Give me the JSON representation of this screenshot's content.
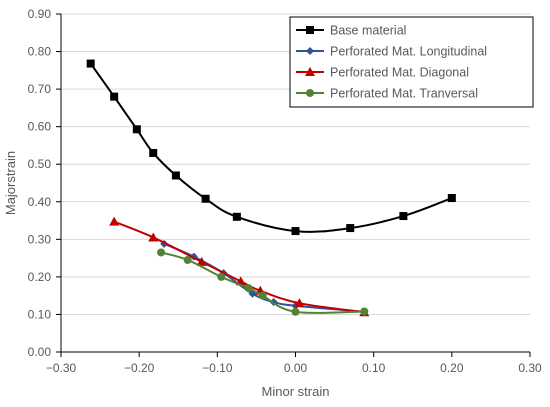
{
  "chart_data": {
    "type": "line",
    "title": "",
    "xlabel": "Minor strain",
    "ylabel": "Majorstrain",
    "xlim": [
      -0.3,
      0.3
    ],
    "ylim": [
      0.0,
      0.9
    ],
    "xticks": [
      -0.3,
      -0.2,
      -0.1,
      0.0,
      0.1,
      0.2,
      0.3
    ],
    "xtick_labels": [
      "−0.30",
      "−0.20",
      "−0.10",
      "0.00",
      "0.10",
      "0.20",
      "0.30"
    ],
    "yticks": [
      0.0,
      0.1,
      0.2,
      0.3,
      0.4,
      0.5,
      0.6,
      0.7,
      0.8,
      0.9
    ],
    "ytick_labels": [
      "0.00",
      "0.10",
      "0.20",
      "0.30",
      "0.40",
      "0.50",
      "0.60",
      "0.70",
      "0.80",
      "0.90"
    ],
    "grid": "horizontal",
    "legend_position": "top-right",
    "series": [
      {
        "name": "Base material",
        "color": "#000000",
        "marker": "square",
        "points": [
          [
            -0.262,
            0.768
          ],
          [
            -0.232,
            0.68
          ],
          [
            -0.203,
            0.593
          ],
          [
            -0.182,
            0.53
          ],
          [
            -0.153,
            0.47
          ],
          [
            -0.115,
            0.408
          ],
          [
            -0.075,
            0.36
          ],
          [
            0.0,
            0.322
          ],
          [
            0.07,
            0.33
          ],
          [
            0.138,
            0.362
          ],
          [
            0.2,
            0.41
          ]
        ]
      },
      {
        "name": "Perforated Mat. Longitudinal",
        "color": "#2F5597",
        "marker": "diamond",
        "points": [
          [
            -0.168,
            0.288
          ],
          [
            -0.13,
            0.254
          ],
          [
            -0.092,
            0.21
          ],
          [
            -0.055,
            0.155
          ],
          [
            -0.028,
            0.133
          ],
          [
            0.0,
            0.123
          ],
          [
            0.088,
            0.107
          ]
        ]
      },
      {
        "name": "Perforated Mat. Diagonal",
        "color": "#C00000",
        "marker": "triangle",
        "points": [
          [
            -0.232,
            0.347
          ],
          [
            -0.182,
            0.305
          ],
          [
            -0.12,
            0.24
          ],
          [
            -0.07,
            0.188
          ],
          [
            -0.045,
            0.163
          ],
          [
            0.005,
            0.13
          ],
          [
            0.088,
            0.106
          ]
        ]
      },
      {
        "name": "Perforated Mat. Tranversal",
        "color": "#548235",
        "marker": "circle",
        "points": [
          [
            -0.172,
            0.265
          ],
          [
            -0.138,
            0.245
          ],
          [
            -0.095,
            0.2
          ],
          [
            -0.06,
            0.17
          ],
          [
            -0.042,
            0.15
          ],
          [
            0.0,
            0.107
          ],
          [
            0.088,
            0.108
          ]
        ]
      }
    ]
  }
}
